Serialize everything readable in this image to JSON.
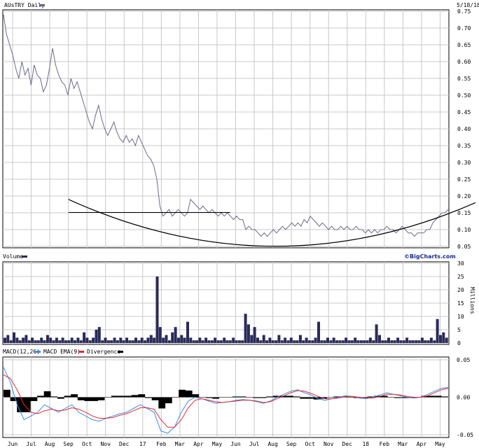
{
  "header": {
    "ticker_label": "AUsTRY Daily",
    "date": "5/18/18"
  },
  "brand": "©BigCharts.com",
  "colors": {
    "price_line": "#6a6a8c",
    "volume_fill": "#2a2a5a",
    "macd_line": "#3a8ee6",
    "ema_line": "#e8262e",
    "divergence": "#000000",
    "grid": "#c8c8c8",
    "border": "#000000"
  },
  "chart_data": [
    {
      "type": "line",
      "title": "AUsTRY Daily",
      "ylim": [
        0.05,
        0.75
      ],
      "y_ticks": [
        "0.75",
        "0.70",
        "0.65",
        "0.60",
        "0.55",
        "0.50",
        "0.45",
        "0.40",
        "0.35",
        "0.30",
        "0.25",
        "0.20",
        "0.15",
        "0.10",
        "0.05"
      ],
      "x_labels": [
        "Jun",
        "Jul",
        "Aug",
        "Sep",
        "Oct",
        "Nov",
        "Dec",
        "17",
        "Feb",
        "Mar",
        "Apr",
        "May",
        "Jun",
        "Jul",
        "Aug",
        "Sep",
        "Oct",
        "Nov",
        "Dec",
        "18",
        "Feb",
        "Mar",
        "Apr",
        "May"
      ],
      "series": [
        {
          "values": [
            0.74,
            0.68,
            0.65,
            0.62,
            0.58,
            0.55,
            0.6,
            0.56,
            0.58,
            0.53,
            0.59,
            0.56,
            0.55,
            0.51,
            0.53,
            0.58,
            0.64,
            0.59,
            0.56,
            0.54,
            0.53,
            0.5,
            0.55,
            0.52,
            0.54,
            0.51,
            0.48,
            0.45,
            0.42,
            0.4,
            0.44,
            0.47,
            0.43,
            0.4,
            0.38,
            0.4,
            0.42,
            0.39,
            0.37,
            0.36,
            0.38,
            0.36,
            0.37,
            0.35,
            0.38,
            0.36,
            0.34,
            0.32,
            0.31,
            0.29,
            0.25,
            0.17,
            0.14,
            0.15,
            0.16,
            0.14,
            0.15,
            0.16,
            0.15,
            0.14,
            0.15,
            0.19,
            0.18,
            0.17,
            0.16,
            0.17,
            0.16,
            0.15,
            0.16,
            0.15,
            0.14,
            0.15,
            0.14,
            0.15,
            0.14,
            0.13,
            0.14,
            0.13,
            0.13,
            0.1,
            0.11,
            0.1,
            0.1,
            0.09,
            0.08,
            0.09,
            0.08,
            0.09,
            0.1,
            0.09,
            0.1,
            0.11,
            0.1,
            0.11,
            0.12,
            0.11,
            0.12,
            0.11,
            0.13,
            0.12,
            0.14,
            0.13,
            0.12,
            0.11,
            0.12,
            0.11,
            0.1,
            0.11,
            0.1,
            0.1,
            0.11,
            0.1,
            0.11,
            0.1,
            0.1,
            0.11,
            0.1,
            0.1,
            0.09,
            0.1,
            0.09,
            0.1,
            0.09,
            0.1,
            0.1,
            0.11,
            0.1,
            0.1,
            0.09,
            0.1,
            0.11,
            0.1,
            0.09,
            0.09,
            0.08,
            0.09,
            0.09,
            0.09,
            0.1,
            0.1,
            0.12,
            0.13,
            0.14,
            0.15,
            0.15,
            0.16
          ]
        }
      ],
      "annotations": [
        {
          "type": "horizontal_line",
          "y": 0.151,
          "x_from": "Sep",
          "x_to": "May"
        },
        {
          "type": "rounding_bottom_arc",
          "start": 0.19,
          "low": 0.053,
          "end": 0.18
        }
      ]
    },
    {
      "type": "bar",
      "title": "Volume",
      "ylabel": "Millions",
      "ylim": [
        0,
        30
      ],
      "y_ticks": [
        "30",
        "25",
        "20",
        "15",
        "10",
        "5",
        "0"
      ],
      "values": [
        2,
        3,
        1,
        4,
        2,
        1,
        2,
        3,
        1,
        2,
        1,
        1,
        2,
        1,
        3,
        2,
        1,
        2,
        1,
        2,
        1,
        1,
        2,
        1,
        2,
        1,
        4,
        2,
        1,
        2,
        5,
        6,
        1,
        2,
        1,
        1,
        2,
        1,
        2,
        1,
        2,
        1,
        1,
        2,
        1,
        2,
        1,
        2,
        3,
        2,
        25,
        6,
        2,
        3,
        1,
        4,
        6,
        2,
        3,
        2,
        8,
        2,
        1,
        1,
        2,
        1,
        2,
        1,
        1,
        2,
        1,
        1,
        2,
        1,
        1,
        2,
        1,
        1,
        1,
        11,
        7,
        3,
        6,
        2,
        1,
        3,
        1,
        2,
        1,
        1,
        3,
        1,
        2,
        1,
        2,
        1,
        1,
        3,
        1,
        2,
        1,
        1,
        2,
        8,
        1,
        1,
        2,
        1,
        2,
        1,
        1,
        1,
        2,
        1,
        1,
        2,
        1,
        1,
        1,
        1,
        2,
        1,
        7,
        3,
        1,
        1,
        2,
        1,
        1,
        2,
        1,
        1,
        2,
        1,
        1,
        1,
        1,
        2,
        1,
        1,
        2,
        1,
        9,
        3,
        4,
        2
      ]
    },
    {
      "type": "line",
      "title": "MACD",
      "ylim": [
        -0.05,
        0.05
      ],
      "y_ticks": [
        "0.05",
        "0.00",
        "-0.05"
      ],
      "series": [
        {
          "name": "MACD(12,26)",
          "values": [
            0.04,
            0.02,
            -0.01,
            -0.03,
            -0.025,
            -0.02,
            -0.01,
            -0.015,
            -0.02,
            -0.015,
            -0.01,
            -0.02,
            -0.025,
            -0.03,
            -0.032,
            -0.028,
            -0.025,
            -0.022,
            -0.02,
            -0.015,
            -0.01,
            -0.015,
            -0.02,
            -0.045,
            -0.048,
            -0.04,
            -0.02,
            -0.005,
            0.0,
            -0.002,
            -0.005,
            -0.008,
            -0.007,
            -0.006,
            -0.004,
            -0.003,
            -0.004,
            -0.006,
            -0.008,
            -0.005,
            0.0,
            0.004,
            0.008,
            0.01,
            0.006,
            0.003,
            -0.002,
            -0.004,
            -0.002,
            0.0,
            0.002,
            0.001,
            -0.001,
            -0.002,
            0.0,
            0.003,
            0.006,
            0.004,
            0.002,
            0.0,
            -0.001,
            0.0,
            0.004,
            0.008,
            0.012,
            0.013
          ]
        },
        {
          "name": "MACD EMA(9)",
          "values": [
            0.03,
            0.025,
            0.01,
            -0.01,
            -0.02,
            -0.022,
            -0.018,
            -0.016,
            -0.018,
            -0.017,
            -0.014,
            -0.016,
            -0.02,
            -0.025,
            -0.028,
            -0.028,
            -0.027,
            -0.024,
            -0.022,
            -0.018,
            -0.014,
            -0.014,
            -0.016,
            -0.03,
            -0.04,
            -0.04,
            -0.03,
            -0.014,
            -0.004,
            -0.002,
            -0.004,
            -0.006,
            -0.007,
            -0.006,
            -0.005,
            -0.004,
            -0.004,
            -0.005,
            -0.007,
            -0.006,
            -0.002,
            0.002,
            0.006,
            0.009,
            0.008,
            0.005,
            0.001,
            -0.002,
            -0.002,
            -0.001,
            0.001,
            0.001,
            0.0,
            -0.001,
            -0.001,
            0.001,
            0.004,
            0.004,
            0.003,
            0.001,
            0.0,
            0.0,
            0.002,
            0.006,
            0.01,
            0.012
          ]
        },
        {
          "name": "Divergence",
          "values": [
            0.01,
            -0.005,
            -0.02,
            -0.02,
            -0.005,
            0.002,
            0.008,
            0.001,
            -0.002,
            0.002,
            0.004,
            -0.004,
            -0.005,
            -0.005,
            -0.004,
            0.0,
            0.002,
            0.002,
            0.002,
            0.003,
            0.004,
            -0.001,
            -0.004,
            -0.015,
            -0.008,
            0.0,
            0.01,
            0.009,
            0.004,
            0.0,
            -0.001,
            -0.002,
            0.0,
            0.0,
            0.001,
            0.001,
            0.0,
            -0.001,
            -0.001,
            0.001,
            0.002,
            0.002,
            0.002,
            0.001,
            -0.002,
            -0.002,
            -0.003,
            -0.002,
            0.0,
            0.001,
            0.001,
            0.0,
            -0.001,
            -0.001,
            0.001,
            0.002,
            0.002,
            0.0,
            -0.001,
            -0.001,
            -0.001,
            0.0,
            0.002,
            0.002,
            0.002,
            0.001
          ]
        }
      ],
      "legend": [
        "MACD(12,26)",
        "MACD EMA(9)",
        "Divergence"
      ]
    }
  ]
}
